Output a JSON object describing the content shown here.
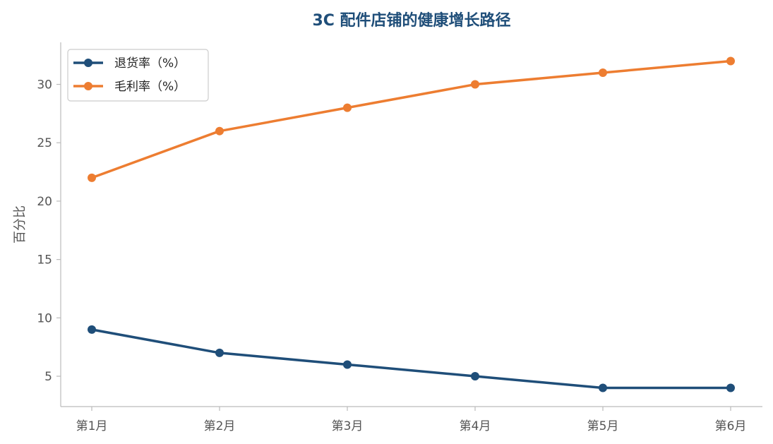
{
  "chart_data": {
    "type": "line",
    "title": "3C 配件店铺的健康增长路径",
    "xlabel": "",
    "ylabel": "百分比",
    "categories": [
      "第1月",
      "第2月",
      "第3月",
      "第4月",
      "第5月",
      "第6月"
    ],
    "ylim": [
      2.4,
      33.6
    ],
    "yticks": [
      5,
      10,
      15,
      20,
      25,
      30
    ],
    "grid": false,
    "legend_position": "top-left",
    "series": [
      {
        "name": "退货率（%）",
        "color": "#1f4e79",
        "marker": "circle",
        "values": [
          9,
          7,
          6,
          5,
          4,
          4
        ]
      },
      {
        "name": "毛利率（%）",
        "color": "#ed7d31",
        "marker": "circle",
        "values": [
          22,
          26,
          28,
          30,
          31,
          32
        ]
      }
    ],
    "colors": {
      "title": "#1f4e79",
      "axis": "#bbbbbb",
      "tick_text": "#555555"
    }
  }
}
